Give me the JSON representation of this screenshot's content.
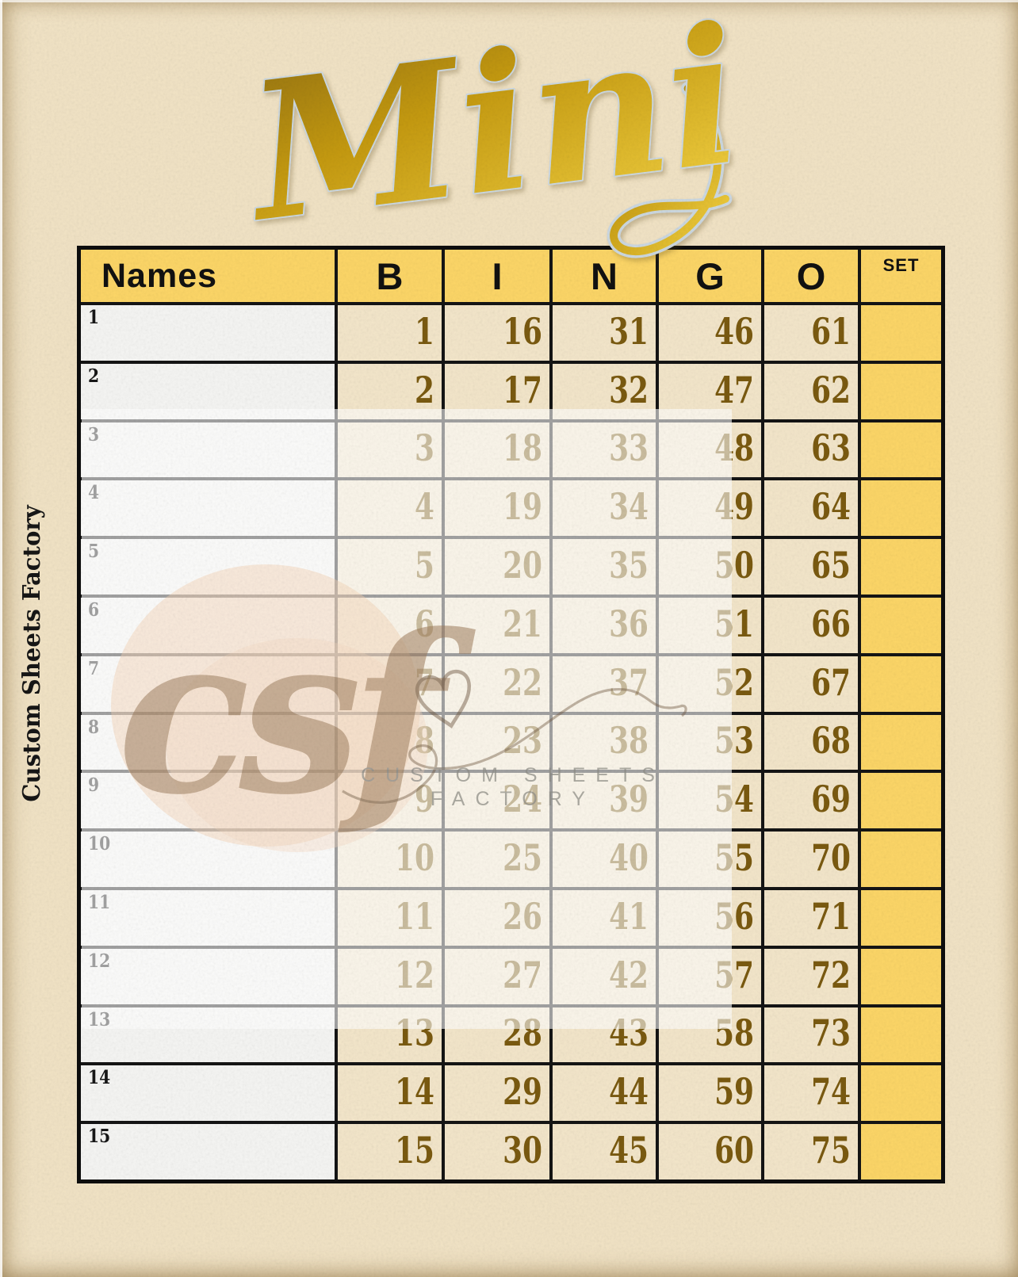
{
  "page": {
    "title": "Mini",
    "side_label": "Custom Sheets Factory"
  },
  "table": {
    "header": {
      "names": "Names",
      "letters": [
        "B",
        "I",
        "N",
        "G",
        "O"
      ],
      "set": "SET"
    },
    "rows": [
      {
        "label": "1",
        "b": "1",
        "i": "16",
        "n": "31",
        "g": "46",
        "o": "61"
      },
      {
        "label": "2",
        "b": "2",
        "i": "17",
        "n": "32",
        "g": "47",
        "o": "62"
      },
      {
        "label": "3",
        "b": "3",
        "i": "18",
        "n": "33",
        "g": "48",
        "o": "63"
      },
      {
        "label": "4",
        "b": "4",
        "i": "19",
        "n": "34",
        "g": "49",
        "o": "64"
      },
      {
        "label": "5",
        "b": "5",
        "i": "20",
        "n": "35",
        "g": "50",
        "o": "65"
      },
      {
        "label": "6",
        "b": "6",
        "i": "21",
        "n": "36",
        "g": "51",
        "o": "66"
      },
      {
        "label": "7",
        "b": "7",
        "i": "22",
        "n": "37",
        "g": "52",
        "o": "67"
      },
      {
        "label": "8",
        "b": "8",
        "i": "23",
        "n": "38",
        "g": "53",
        "o": "68"
      },
      {
        "label": "9",
        "b": "9",
        "i": "24",
        "n": "39",
        "g": "54",
        "o": "69"
      },
      {
        "label": "10",
        "b": "10",
        "i": "25",
        "n": "40",
        "g": "55",
        "o": "70"
      },
      {
        "label": "11",
        "b": "11",
        "i": "26",
        "n": "41",
        "g": "56",
        "o": "71"
      },
      {
        "label": "12",
        "b": "12",
        "i": "27",
        "n": "42",
        "g": "57",
        "o": "72"
      },
      {
        "label": "13",
        "b": "13",
        "i": "28",
        "n": "43",
        "g": "58",
        "o": "73"
      },
      {
        "label": "14",
        "b": "14",
        "i": "29",
        "n": "44",
        "g": "59",
        "o": "74"
      },
      {
        "label": "15",
        "b": "15",
        "i": "30",
        "n": "45",
        "g": "60",
        "o": "75"
      }
    ]
  },
  "watermark": {
    "logo": "csf",
    "line1": "CUSTOM SHEETS",
    "line2": "FACTORY"
  },
  "colors": {
    "accent_yellow": "#fcd667",
    "number_gold": "#7a5a10",
    "background_beige": "#f1e3c5",
    "cell_beige": "#f3e6ca",
    "name_cell_white": "#f5f5f3",
    "grid_black": "#141414",
    "title_gold_dark": "#8f6e12",
    "title_gold_mid": "#c59a10",
    "title_gold_light": "#ecc93a",
    "title_outline": "#ccd8e0",
    "watermark_brown": "#9d7a58",
    "watermark_gray": "#8f8d87"
  }
}
